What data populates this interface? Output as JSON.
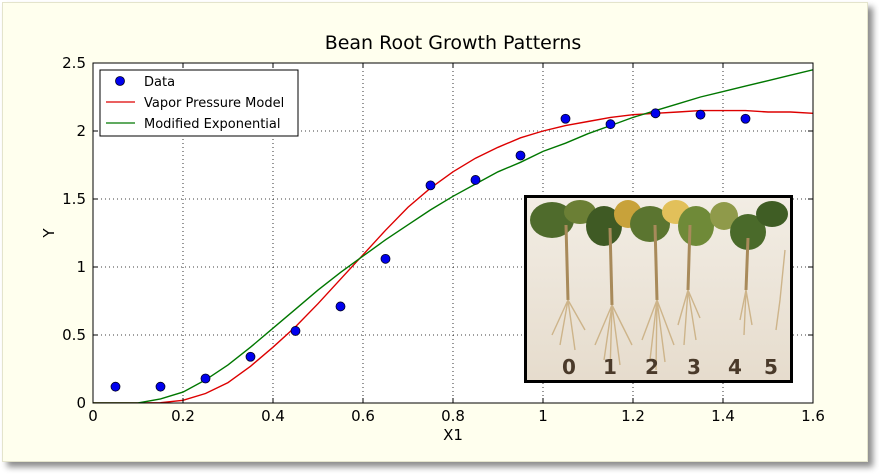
{
  "chart_data": {
    "type": "scatter",
    "title": "Bean Root Growth Patterns",
    "xlabel": "X1",
    "ylabel": "Y",
    "xlim": [
      0,
      1.6
    ],
    "ylim": [
      0,
      2.5
    ],
    "x_ticks": [
      "0",
      "0.2",
      "0.4",
      "0.6",
      "0.8",
      "1",
      "1.2",
      "1.4",
      "1.6"
    ],
    "y_ticks": [
      "0",
      "0.5",
      "1",
      "1.5",
      "2",
      "2.5"
    ],
    "grid": true,
    "legend_position": "top-left",
    "series": [
      {
        "name": "Data",
        "kind": "scatter",
        "color": "#0000ee",
        "x": [
          0.05,
          0.15,
          0.25,
          0.35,
          0.45,
          0.55,
          0.65,
          0.75,
          0.85,
          0.95,
          1.05,
          1.15,
          1.25,
          1.35,
          1.45
        ],
        "y": [
          0.12,
          0.12,
          0.18,
          0.34,
          0.53,
          0.71,
          1.06,
          1.6,
          1.64,
          1.82,
          2.09,
          2.05,
          2.13,
          2.12,
          2.09
        ]
      },
      {
        "name": "Vapor Pressure Model",
        "kind": "line",
        "color": "#dd0000",
        "x": [
          0.0,
          0.1,
          0.15,
          0.2,
          0.25,
          0.3,
          0.35,
          0.4,
          0.45,
          0.5,
          0.55,
          0.6,
          0.65,
          0.7,
          0.75,
          0.8,
          0.85,
          0.9,
          0.95,
          1.0,
          1.05,
          1.1,
          1.15,
          1.2,
          1.25,
          1.3,
          1.35,
          1.4,
          1.45,
          1.5,
          1.55,
          1.6
        ],
        "y": [
          0.0,
          0.0,
          0.002,
          0.02,
          0.07,
          0.15,
          0.27,
          0.41,
          0.56,
          0.73,
          0.91,
          1.09,
          1.27,
          1.44,
          1.58,
          1.7,
          1.8,
          1.88,
          1.95,
          2.0,
          2.04,
          2.07,
          2.1,
          2.12,
          2.13,
          2.14,
          2.15,
          2.15,
          2.15,
          2.14,
          2.14,
          2.13
        ]
      },
      {
        "name": "Modified Exponential",
        "kind": "line",
        "color": "#007700",
        "x": [
          0.0,
          0.1,
          0.15,
          0.2,
          0.25,
          0.3,
          0.35,
          0.4,
          0.45,
          0.5,
          0.55,
          0.6,
          0.65,
          0.7,
          0.75,
          0.8,
          0.85,
          0.9,
          0.95,
          1.0,
          1.05,
          1.1,
          1.15,
          1.2,
          1.25,
          1.3,
          1.35,
          1.4,
          1.45,
          1.5,
          1.55,
          1.6
        ],
        "y": [
          0.0,
          0.0,
          0.03,
          0.08,
          0.17,
          0.28,
          0.41,
          0.55,
          0.69,
          0.83,
          0.96,
          1.08,
          1.2,
          1.31,
          1.42,
          1.52,
          1.61,
          1.7,
          1.77,
          1.85,
          1.91,
          1.98,
          2.04,
          2.1,
          2.15,
          2.2,
          2.25,
          2.29,
          2.33,
          2.37,
          2.41,
          2.45
        ]
      }
    ],
    "inset_photo_labels": [
      "0",
      "1",
      "2",
      "3",
      "4",
      "5"
    ]
  }
}
